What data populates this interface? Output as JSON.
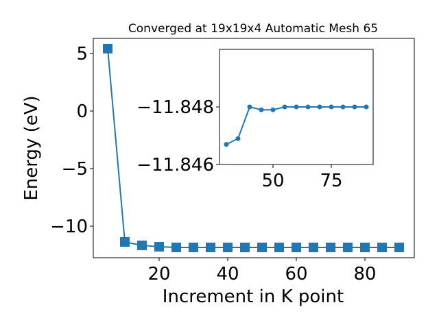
{
  "chart_data": [
    {
      "type": "line",
      "title": "Converged at 19x19x4 Automatic Mesh 65",
      "xlabel": "Increment in K point",
      "ylabel": "Energy (eV)",
      "x": [
        5,
        10,
        15,
        20,
        25,
        30,
        35,
        40,
        45,
        50,
        55,
        60,
        65,
        70,
        75,
        80,
        85,
        90
      ],
      "series": [
        {
          "color": "#1f77b4",
          "marker": "square",
          "values": [
            5.42,
            -11.37,
            -11.67,
            -11.79,
            -11.846,
            -11.8467,
            -11.8469,
            -11.848,
            -11.8479,
            -11.8479,
            -11.848,
            -11.848,
            -11.848,
            -11.848,
            -11.848,
            -11.848,
            -11.848,
            -11.848
          ]
        }
      ],
      "xlim": [
        0.8,
        94.4
      ],
      "ylim": [
        -12.74,
        6.31
      ],
      "xticks": [
        20,
        40,
        60,
        80
      ],
      "yticks": [
        {
          "value": -10,
          "label": "−10"
        },
        {
          "value": -5,
          "label": "−5"
        },
        0,
        5
      ]
    },
    {
      "type": "line",
      "x": [
        30,
        35,
        40,
        45,
        50,
        55,
        60,
        65,
        70,
        75,
        80,
        85,
        90
      ],
      "series": [
        {
          "color": "#1f77b4",
          "marker": "circle",
          "values": [
            -11.8467,
            -11.8469,
            -11.848,
            -11.8479,
            -11.8479,
            -11.848,
            -11.848,
            -11.848,
            -11.848,
            -11.848,
            -11.848,
            -11.848,
            -11.848
          ]
        }
      ],
      "xlim": [
        27.06,
        92.94
      ],
      "ylim": [
        -11.846,
        -11.85
      ],
      "xticks": [
        50,
        75
      ],
      "yticks": [
        {
          "value": -11.848,
          "label": "−11.848"
        },
        {
          "value": -11.846,
          "label": "−11.846"
        }
      ]
    }
  ]
}
